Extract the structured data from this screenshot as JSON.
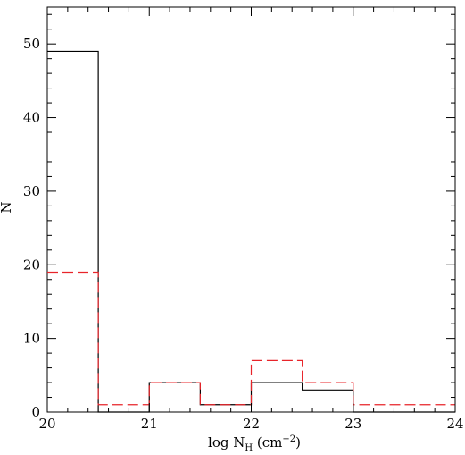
{
  "chart_data": {
    "type": "histogram",
    "title": "",
    "xlabel": {
      "prefix": "log N",
      "sub": "H",
      "mid": " (cm",
      "sup": "−2",
      "suffix": ")"
    },
    "ylabel": "N",
    "xlim": [
      20,
      24
    ],
    "ylim": [
      0,
      55
    ],
    "x_ticks": [
      20,
      21,
      22,
      23,
      24
    ],
    "y_ticks": [
      0,
      10,
      20,
      30,
      40,
      50
    ],
    "x_tick_labels": [
      "20",
      "21",
      "22",
      "23",
      "24"
    ],
    "y_tick_labels": [
      "0",
      "10",
      "20",
      "30",
      "40",
      "50"
    ],
    "bin_edges": [
      20.0,
      20.5,
      21.0,
      21.5,
      22.0,
      22.5,
      23.0,
      23.5,
      24.0
    ],
    "series": [
      {
        "style": "solid",
        "color": "#000000",
        "values": [
          49,
          0,
          4,
          1,
          4,
          3,
          0,
          0
        ]
      },
      {
        "style": "dashed",
        "color": "#e8242a",
        "values": [
          19,
          1,
          4,
          1,
          7,
          4,
          1,
          1
        ]
      }
    ],
    "grid": false,
    "legend": "none"
  }
}
